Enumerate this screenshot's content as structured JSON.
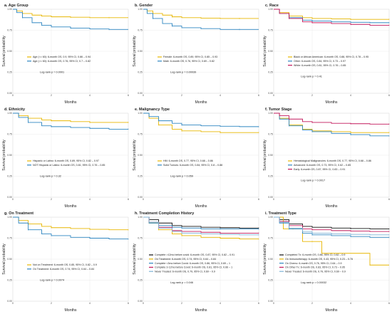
{
  "chart_data": [
    {
      "type": "line",
      "title": "a. Age Group",
      "xlabel": "Months",
      "ylabel": "Survival probability",
      "xticks": [
        "0",
        "2",
        "4",
        "6"
      ],
      "yticks": [
        "0.00",
        "0.25",
        "0.50",
        "0.75",
        "1.00"
      ],
      "xlim": [
        0,
        6
      ],
      "ylim": [
        0,
        1
      ],
      "grid": true,
      "pvalue": "Log-rank p = 0.0001",
      "series": [
        {
          "name": "Age (<= 60): 6-month OS, 0.9, 95% CI, 0.86 – 0.94",
          "color": "#E8B600",
          "x": [
            0,
            0.2,
            0.5,
            1,
            1.5,
            2,
            3,
            4,
            5,
            6
          ],
          "y": [
            1,
            0.98,
            0.95,
            0.93,
            0.92,
            0.91,
            0.905,
            0.9,
            0.9,
            0.9
          ]
        },
        {
          "name": "Age (>= 60): 6-month OS, 0.76, 95% CI, 0.7 – 0.82",
          "color": "#2E86C1",
          "x": [
            0,
            0.2,
            0.5,
            1,
            1.5,
            2,
            3,
            4,
            5,
            6
          ],
          "y": [
            1,
            0.96,
            0.9,
            0.84,
            0.81,
            0.79,
            0.775,
            0.765,
            0.76,
            0.76
          ]
        }
      ]
    },
    {
      "type": "line",
      "title": "b. Gender",
      "xlabel": "Months",
      "ylabel": "Survival probability",
      "xticks": [
        "0",
        "2",
        "4",
        "6"
      ],
      "yticks": [
        "0.00",
        "0.25",
        "0.50",
        "0.75",
        "1.00"
      ],
      "xlim": [
        0,
        6
      ],
      "ylim": [
        0,
        1
      ],
      "grid": true,
      "pvalue": "Log-rank p = 0.00039",
      "series": [
        {
          "name": "Female: 6-month OS, 0.89, 95% CI, 0.85 – 0.93",
          "color": "#E8B600",
          "x": [
            0,
            0.2,
            0.5,
            1,
            1.5,
            2,
            3,
            4,
            5,
            6
          ],
          "y": [
            1,
            0.98,
            0.95,
            0.93,
            0.91,
            0.9,
            0.895,
            0.89,
            0.89,
            0.89
          ]
        },
        {
          "name": "Male: 6-month OS, 0.76, 95% CI, 0.69 – 0.82",
          "color": "#2E86C1",
          "x": [
            0,
            0.2,
            0.5,
            1,
            1.5,
            2,
            3,
            4,
            5,
            6
          ],
          "y": [
            1,
            0.95,
            0.89,
            0.83,
            0.8,
            0.78,
            0.77,
            0.76,
            0.76,
            0.76
          ]
        }
      ]
    },
    {
      "type": "line",
      "title": "c. Race",
      "xlabel": "Months",
      "ylabel": "Survival probability",
      "xticks": [
        "0",
        "2",
        "4",
        "6"
      ],
      "yticks": [
        "0.00",
        "0.25",
        "0.50",
        "0.75",
        "1.00"
      ],
      "xlim": [
        0,
        6
      ],
      "ylim": [
        0,
        1
      ],
      "grid": true,
      "pvalue": "Log-rank p = 0.41",
      "series": [
        {
          "name": "Black or African American: 6-month OS, 0.88, 95% CI, 0.78 – 0.95",
          "color": "#E8B600",
          "x": [
            0,
            0.3,
            0.8,
            1.5,
            2,
            3,
            4,
            5,
            6
          ],
          "y": [
            1,
            0.96,
            0.92,
            0.9,
            0.89,
            0.885,
            0.88,
            0.88,
            0.88
          ]
        },
        {
          "name": "Other: 6-month OS, 0.84, 95% CI, 0.73 – 0.97",
          "color": "#2E86C1",
          "x": [
            0,
            0.3,
            0.8,
            1.5,
            2,
            3,
            4,
            5,
            6
          ],
          "y": [
            1,
            0.95,
            0.9,
            0.87,
            0.86,
            0.85,
            0.845,
            0.84,
            0.84
          ]
        },
        {
          "name": "White: 6-month OS, 0.81, 95% CI, 0.76 – 0.85",
          "color": "#C2185B",
          "x": [
            0,
            0.3,
            0.8,
            1.5,
            2,
            3,
            4,
            5,
            6
          ],
          "y": [
            1,
            0.95,
            0.89,
            0.85,
            0.84,
            0.83,
            0.82,
            0.81,
            0.81
          ]
        }
      ]
    },
    {
      "type": "line",
      "title": "d. Ethnicity",
      "xlabel": "Months",
      "ylabel": "Survival probability",
      "xticks": [
        "0",
        "2",
        "4",
        "6"
      ],
      "yticks": [
        "0.00",
        "0.25",
        "0.50",
        "0.75",
        "1.00"
      ],
      "xlim": [
        0,
        6
      ],
      "ylim": [
        0,
        1
      ],
      "grid": true,
      "pvalue": "Log-rank p = 0.32",
      "series": [
        {
          "name": "Hispanic or Latino: 6-month OS, 0.89, 95% CI, 0.82 – 0.97",
          "color": "#E8B600",
          "x": [
            0,
            0.3,
            0.8,
            1.5,
            2,
            3,
            4,
            5,
            6
          ],
          "y": [
            1,
            0.97,
            0.94,
            0.92,
            0.91,
            0.9,
            0.89,
            0.89,
            0.89
          ]
        },
        {
          "name": "NOT Hispanic or Latino: 6-month OS, 0.81, 95% CI, 0.76 – 0.85",
          "color": "#2E86C1",
          "x": [
            0,
            0.3,
            0.8,
            1.5,
            2,
            3,
            4,
            5,
            6
          ],
          "y": [
            1,
            0.95,
            0.89,
            0.85,
            0.84,
            0.83,
            0.82,
            0.81,
            0.81
          ]
        }
      ]
    },
    {
      "type": "line",
      "title": "e. Malignancy Type",
      "xlabel": "Months",
      "ylabel": "Survival probability",
      "xticks": [
        "0",
        "2",
        "4",
        "6"
      ],
      "yticks": [
        "0.00",
        "0.25",
        "0.50",
        "0.75",
        "1.00"
      ],
      "xlim": [
        0,
        6
      ],
      "ylim": [
        0,
        1
      ],
      "grid": true,
      "pvalue": "Log-rank p = 0.059",
      "series": [
        {
          "name": "HM: 6-month OS, 0.77, 95% CI, 0.68 – 0.86",
          "color": "#E8B600",
          "x": [
            0,
            0.3,
            0.8,
            1.5,
            2,
            3,
            4,
            5,
            6
          ],
          "y": [
            1,
            0.94,
            0.86,
            0.81,
            0.79,
            0.78,
            0.77,
            0.77,
            0.77
          ]
        },
        {
          "name": "Solid Tumors: 6-month OS, 0.84, 95% CI, 0.8 – 0.88",
          "color": "#2E86C1",
          "x": [
            0,
            0.3,
            0.8,
            1.5,
            2,
            3,
            4,
            5,
            6
          ],
          "y": [
            1,
            0.96,
            0.91,
            0.88,
            0.86,
            0.85,
            0.845,
            0.84,
            0.84
          ]
        }
      ]
    },
    {
      "type": "line",
      "title": "f. Tumor Stage",
      "xlabel": "Months",
      "ylabel": "Survival probability",
      "xticks": [
        "0",
        "2",
        "4",
        "6"
      ],
      "yticks": [
        "0.00",
        "0.25",
        "0.50",
        "0.75",
        "1.00"
      ],
      "xlim": [
        0,
        6
      ],
      "ylim": [
        0,
        1
      ],
      "grid": true,
      "pvalue": "Log-rank p = 0.0017",
      "series": [
        {
          "name": "Hematological Malignancies: 6-month OS, 0.77, 95% CI, 0.68 – 0.86",
          "color": "#E8B600",
          "x": [
            0,
            0.3,
            0.8,
            1.5,
            2,
            3,
            4,
            5,
            6
          ],
          "y": [
            1,
            0.94,
            0.86,
            0.81,
            0.79,
            0.78,
            0.77,
            0.77,
            0.77
          ]
        },
        {
          "name": "Advanced: 6-month OS, 0.73, 95% CI, 0.62 – 0.85",
          "color": "#2E86C1",
          "x": [
            0,
            0.3,
            0.8,
            1.5,
            2,
            3,
            4,
            5,
            6
          ],
          "y": [
            1,
            0.93,
            0.85,
            0.8,
            0.78,
            0.76,
            0.745,
            0.73,
            0.73
          ]
        },
        {
          "name": "Early: 6-month OS, 0.87, 95% CI, 0.83 – 0.91",
          "color": "#C2185B",
          "x": [
            0,
            0.3,
            0.8,
            1.5,
            2,
            3,
            4,
            5,
            6
          ],
          "y": [
            1,
            0.97,
            0.93,
            0.9,
            0.89,
            0.88,
            0.875,
            0.87,
            0.87
          ]
        }
      ]
    },
    {
      "type": "line",
      "title": "g. On Treatment",
      "xlabel": "Months",
      "ylabel": "Survival probability",
      "xticks": [
        "0",
        "2",
        "4",
        "6"
      ],
      "yticks": [
        "0.00",
        "0.25",
        "0.50",
        "0.75",
        "1.00"
      ],
      "xlim": [
        0,
        6
      ],
      "ylim": [
        0,
        1
      ],
      "grid": true,
      "pvalue": "Log-rank p = 0.0074",
      "series": [
        {
          "name": "Not on Treatment: 6-month OS, 0.85, 95% CI, 0.82 – 0.9",
          "color": "#E8B600",
          "x": [
            0,
            0.3,
            0.8,
            1.5,
            2,
            3,
            4,
            5,
            6
          ],
          "y": [
            1,
            0.96,
            0.92,
            0.89,
            0.875,
            0.865,
            0.855,
            0.85,
            0.85
          ]
        },
        {
          "name": "On Treatment: 6-month OS, 0.74, 95% CI, 0.64 – 0.84",
          "color": "#2E86C1",
          "x": [
            0,
            0.3,
            0.8,
            1.5,
            2,
            3,
            4,
            5,
            6
          ],
          "y": [
            1,
            0.93,
            0.85,
            0.8,
            0.78,
            0.76,
            0.75,
            0.74,
            0.74
          ]
        }
      ]
    },
    {
      "type": "line",
      "title": "h. Treatment Completion History",
      "xlabel": "Months",
      "ylabel": "Survival probability",
      "xticks": [
        "0",
        "2",
        "4",
        "6"
      ],
      "yticks": [
        "0.00",
        "0.25",
        "0.50",
        "0.75",
        "1.00"
      ],
      "xlim": [
        0,
        6
      ],
      "ylim": [
        0,
        1
      ],
      "grid": true,
      "pvalue": "Log-rank p = 0.046",
      "series": [
        {
          "name": "Complete >12mo before covid: 6-month OS, 0.87, 95% CI, 0.82 – 0.91",
          "color": "#111111",
          "x": [
            0,
            0.3,
            0.8,
            1.5,
            2,
            3,
            4,
            5,
            6
          ],
          "y": [
            1,
            0.97,
            0.93,
            0.9,
            0.89,
            0.88,
            0.875,
            0.87,
            0.87
          ]
        },
        {
          "name": "On Treatment: 6-month OS, 0.74, 95% CI, 0.64 – 0.84",
          "color": "#E8B600",
          "x": [
            0,
            0.3,
            0.8,
            1.5,
            2,
            3,
            4,
            5,
            6
          ],
          "y": [
            1,
            0.93,
            0.85,
            0.8,
            0.78,
            0.76,
            0.75,
            0.74,
            0.74
          ]
        },
        {
          "name": "Complete <3mo before Covid: 6-month OS, 0.86, 95% CI, 0.69 – 1",
          "color": "#2E86C1",
          "x": [
            0,
            0.3,
            0.8,
            1.5,
            2,
            3,
            4,
            5,
            6
          ],
          "y": [
            1,
            0.93,
            0.9,
            0.88,
            0.87,
            0.86,
            0.86,
            0.86,
            0.86
          ]
        },
        {
          "name": "Complete 3-12mo before Covid: 6-month OS, 0.81, 95% CI, 0.66 – 1",
          "color": "#C2185B",
          "x": [
            0,
            0.3,
            0.8,
            1.5,
            2,
            3,
            4,
            5,
            6
          ],
          "y": [
            1,
            0.94,
            0.88,
            0.84,
            0.83,
            0.82,
            0.81,
            0.81,
            0.81
          ]
        },
        {
          "name": "Never Treated: 6-month OS, 0.79, 95% CI, 0.69 – 0.9",
          "color": "#7FB3D5",
          "x": [
            0,
            0.3,
            0.8,
            1.5,
            2,
            3,
            4,
            5,
            6
          ],
          "y": [
            1,
            0.94,
            0.87,
            0.83,
            0.81,
            0.8,
            0.795,
            0.79,
            0.79
          ]
        }
      ]
    },
    {
      "type": "line",
      "title": "i. Treatment Type",
      "xlabel": "Months",
      "ylabel": "Survival probability",
      "xticks": [
        "0",
        "2",
        "4",
        "6"
      ],
      "yticks": [
        "0.00",
        "0.25",
        "0.50",
        "0.75",
        "1.00"
      ],
      "xlim": [
        0,
        6
      ],
      "ylim": [
        0,
        1
      ],
      "grid": true,
      "pvalue": "Log-rank p = 0.00032",
      "series": [
        {
          "name": "Completed Tx: 6-month OS, 0.86, 95% CI, 0.82 – 0.9",
          "color": "#111111",
          "x": [
            0,
            0.3,
            0.8,
            1.5,
            2,
            3,
            4,
            5,
            6
          ],
          "y": [
            1,
            0.97,
            0.92,
            0.89,
            0.88,
            0.87,
            0.865,
            0.86,
            0.86
          ]
        },
        {
          "name": "On Immunotherapy: 6-month OS, 0.43, 95% CI, 0.23 – 0.78",
          "color": "#E8B600",
          "x": [
            0,
            0.5,
            1,
            1.5,
            2,
            2.5,
            3,
            4,
            5,
            6
          ],
          "y": [
            1,
            0.86,
            0.86,
            0.71,
            0.71,
            0.57,
            0.57,
            0.57,
            0.43,
            0.43
          ]
        },
        {
          "name": "On Chemo: 6-month OS, 0.76, 95% CI, 0.64 – 0.9",
          "color": "#2E86C1",
          "x": [
            0,
            0.3,
            0.8,
            1.5,
            2,
            3,
            4,
            5,
            6
          ],
          "y": [
            1,
            0.93,
            0.86,
            0.81,
            0.79,
            0.78,
            0.77,
            0.76,
            0.76
          ]
        },
        {
          "name": "On Other Tx: 6-month OS, 0.83, 95% CI, 0.73 – 0.95",
          "color": "#C2185B",
          "x": [
            0,
            0.3,
            0.8,
            1.5,
            2,
            3,
            4,
            5,
            6
          ],
          "y": [
            1,
            0.95,
            0.9,
            0.86,
            0.85,
            0.84,
            0.835,
            0.83,
            0.83
          ]
        },
        {
          "name": "Never Treated: 6-month OS, 0.79, 95% CI, 0.69 – 0.9",
          "color": "#7FB3D5",
          "x": [
            0,
            0.3,
            0.8,
            1.5,
            2,
            3,
            4,
            5,
            6
          ],
          "y": [
            1,
            0.94,
            0.87,
            0.83,
            0.81,
            0.8,
            0.795,
            0.79,
            0.79
          ]
        }
      ]
    }
  ]
}
